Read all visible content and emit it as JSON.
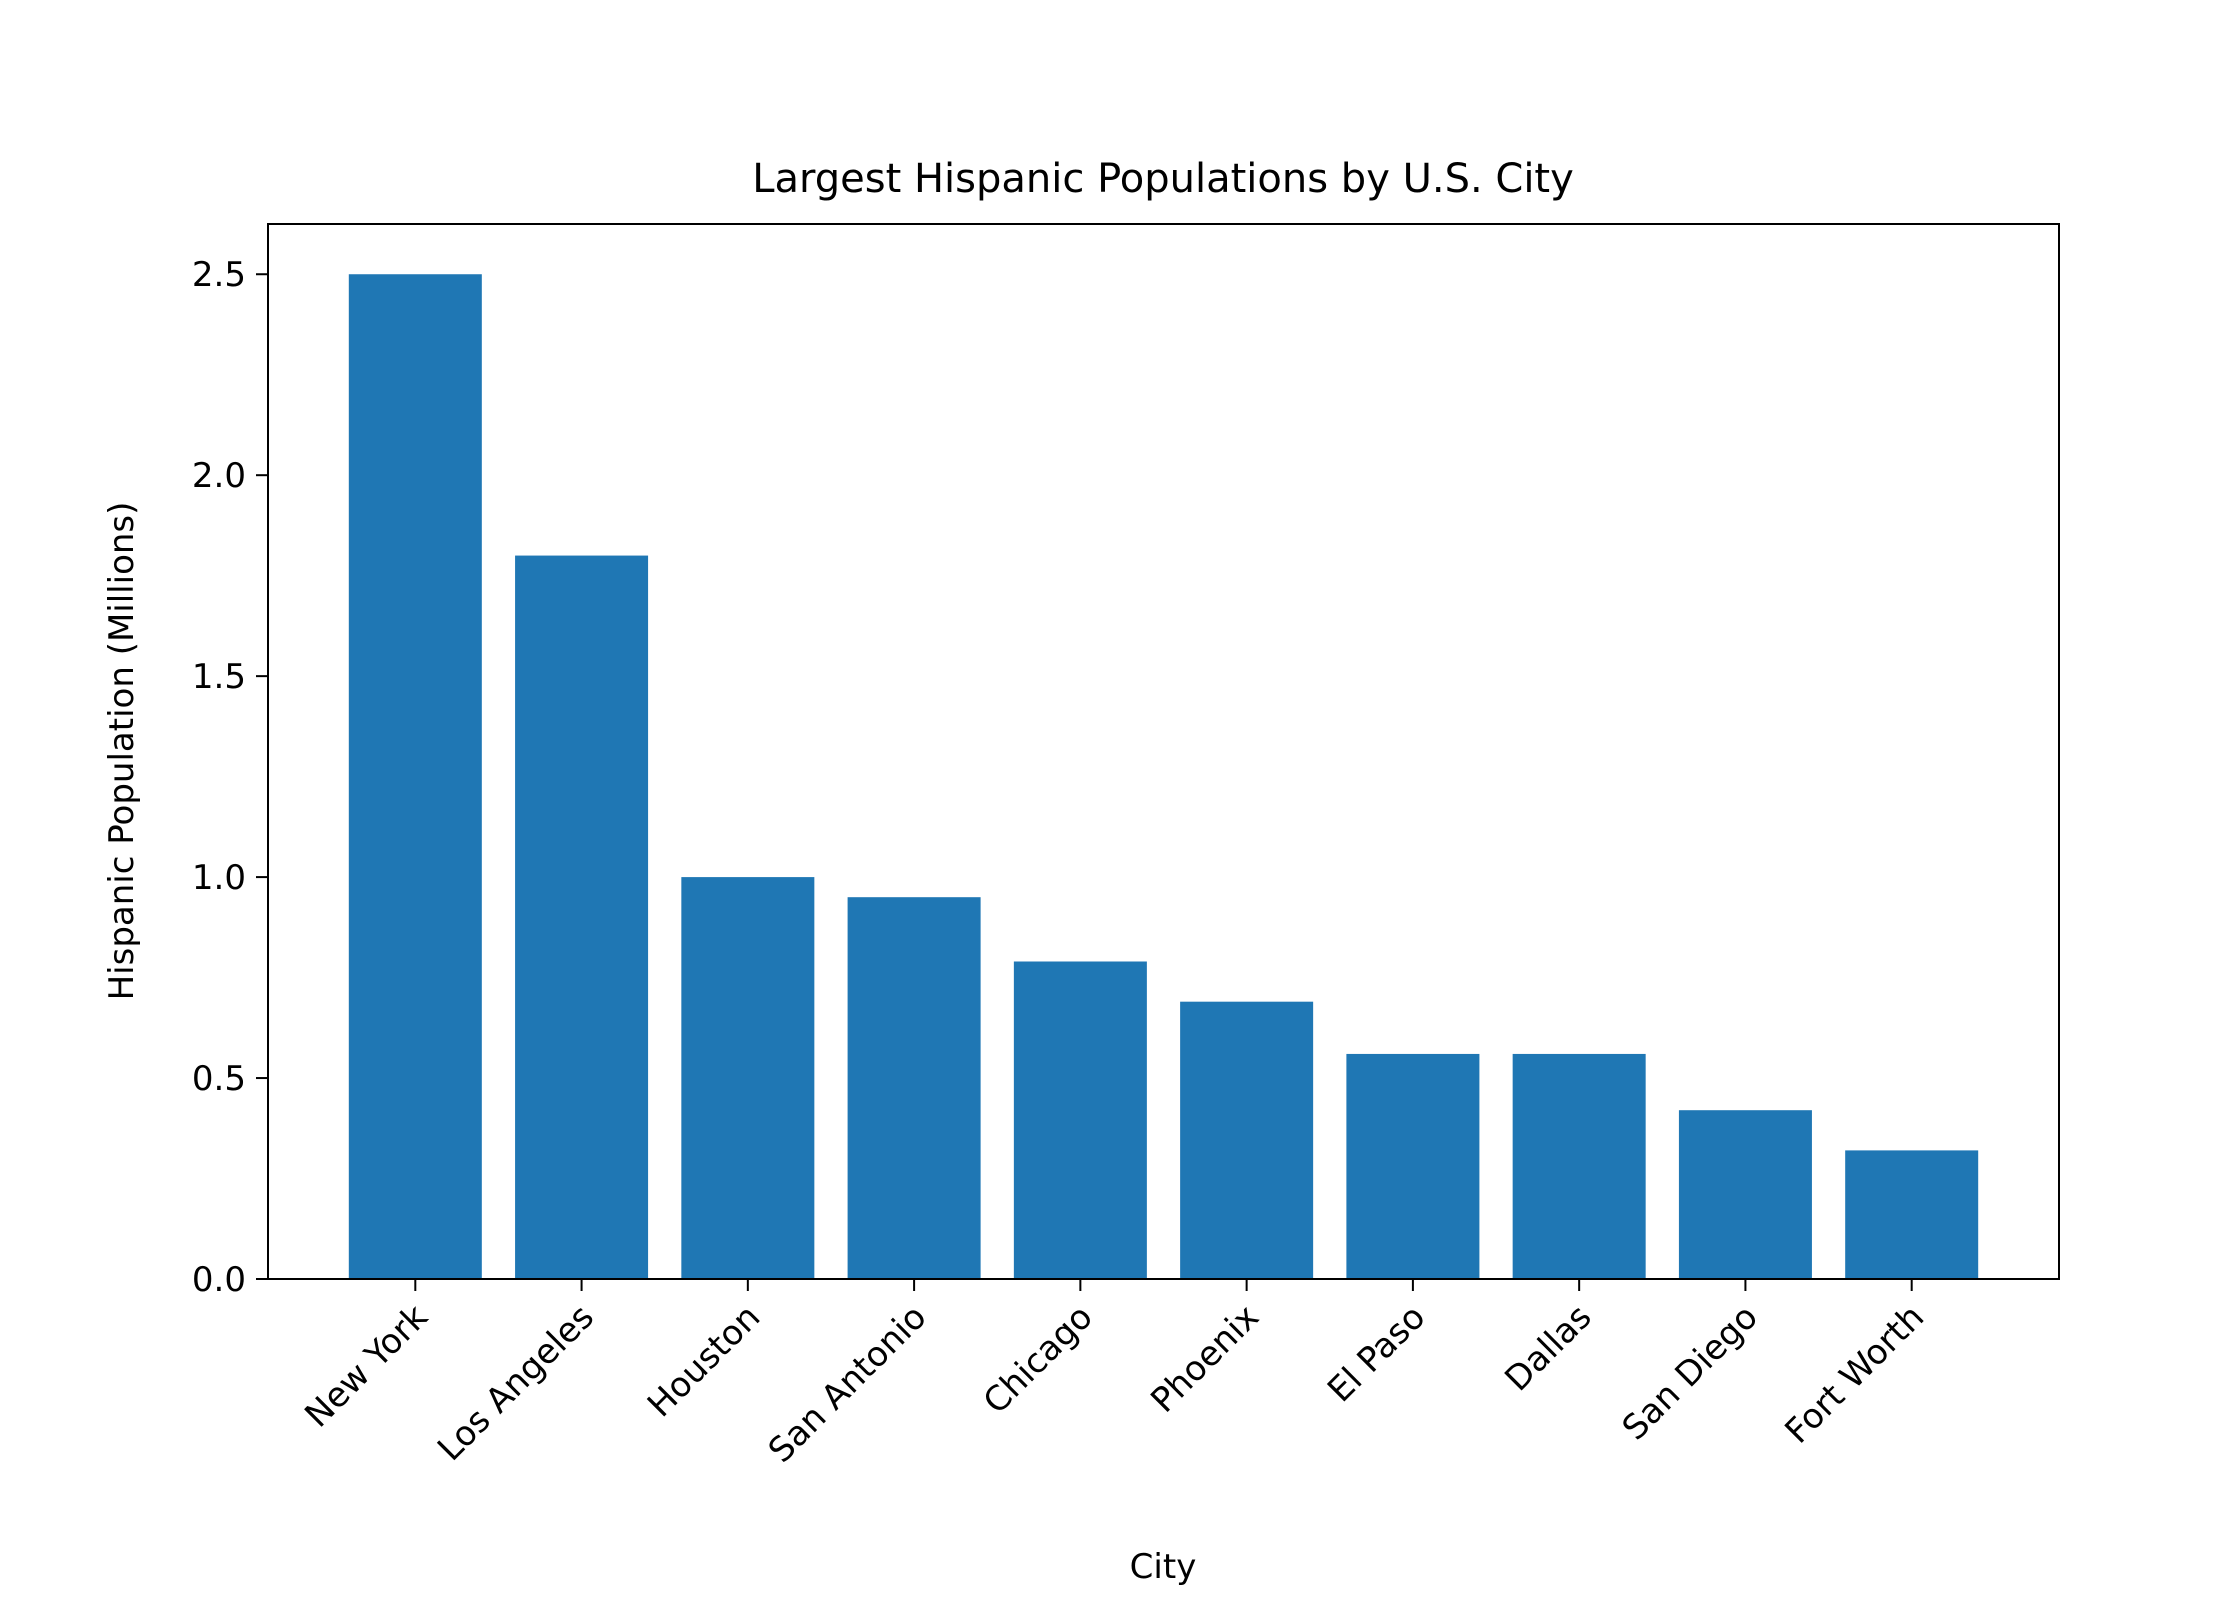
{
  "chart_data": {
    "type": "bar",
    "title": "Largest Hispanic Populations by U.S. City",
    "xlabel": "City",
    "ylabel": "Hispanic Population (Millions)",
    "categories": [
      "New York",
      "Los Angeles",
      "Houston",
      "San Antonio",
      "Chicago",
      "Phoenix",
      "El Paso",
      "Dallas",
      "San Diego",
      "Fort Worth"
    ],
    "values": [
      2.5,
      1.8,
      1.0,
      0.95,
      0.79,
      0.69,
      0.56,
      0.56,
      0.42,
      0.32
    ],
    "ylim": [
      0,
      2.625
    ],
    "yticks": [
      0.0,
      0.5,
      1.0,
      1.5,
      2.0,
      2.5
    ],
    "ytick_labels": [
      "0.0",
      "0.5",
      "1.0",
      "1.5",
      "2.0",
      "2.5"
    ],
    "grid": false,
    "bar_color": "#1f77b4"
  }
}
